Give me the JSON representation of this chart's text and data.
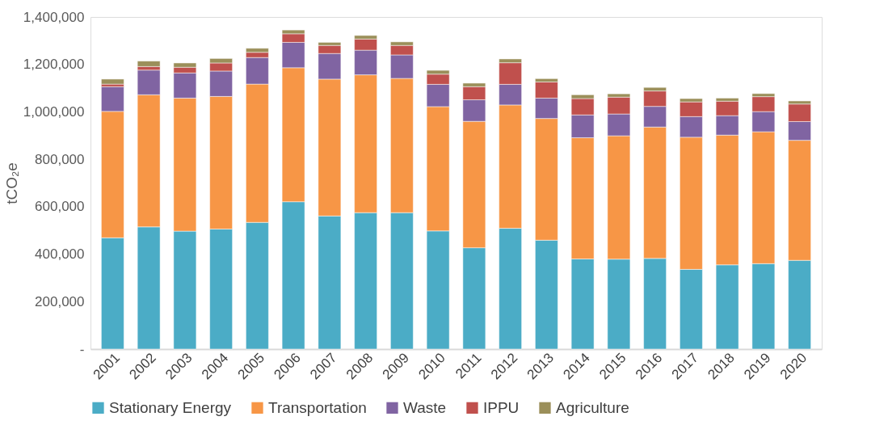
{
  "chart_data": {
    "type": "bar",
    "stacked": true,
    "ylabel": "tCO₂e",
    "categories": [
      "2001",
      "2002",
      "2003",
      "2004",
      "2005",
      "2006",
      "2007",
      "2008",
      "2009",
      "2010",
      "2011",
      "2012",
      "2013",
      "2014",
      "2015",
      "2016",
      "2017",
      "2018",
      "2019",
      "2020"
    ],
    "series": [
      {
        "name": "Stationary Energy",
        "color": "#4bacc6",
        "values": [
          469000,
          515000,
          497000,
          506000,
          534000,
          621000,
          561000,
          575000,
          575000,
          498000,
          427000,
          509000,
          459000,
          380000,
          379000,
          382000,
          336000,
          355000,
          360000,
          374000
        ]
      },
      {
        "name": "Transportation",
        "color": "#f79646",
        "values": [
          533000,
          557000,
          561000,
          559000,
          583000,
          565000,
          577000,
          581000,
          566000,
          524000,
          533000,
          520000,
          513000,
          511000,
          520000,
          554000,
          557000,
          547000,
          556000,
          506000
        ]
      },
      {
        "name": "Waste",
        "color": "#8064a2",
        "values": [
          104000,
          104000,
          106000,
          107000,
          112000,
          107000,
          108000,
          104000,
          99000,
          94000,
          91000,
          87000,
          86000,
          96000,
          92000,
          87000,
          87000,
          82000,
          85000,
          79000
        ]
      },
      {
        "name": "IPPU",
        "color": "#c0504d",
        "values": [
          11000,
          15000,
          24000,
          34000,
          22000,
          36000,
          34000,
          47000,
          40000,
          43000,
          55000,
          91000,
          68000,
          69000,
          71000,
          65000,
          62000,
          61000,
          63000,
          74000
        ]
      },
      {
        "name": "Agriculture",
        "color": "#9b8f5a",
        "values": [
          21000,
          23000,
          18000,
          19000,
          17000,
          16000,
          13000,
          15000,
          15000,
          16000,
          15000,
          16000,
          14000,
          16000,
          14000,
          15000,
          14000,
          13000,
          13000,
          13000
        ]
      }
    ],
    "ylim": [
      0,
      1400000
    ],
    "yticks": [
      {
        "value": 0,
        "label": "-"
      },
      {
        "value": 200000,
        "label": "200,000"
      },
      {
        "value": 400000,
        "label": "400,000"
      },
      {
        "value": 600000,
        "label": "600,000"
      },
      {
        "value": 800000,
        "label": "800,000"
      },
      {
        "value": 1000000,
        "label": "1,000,000"
      },
      {
        "value": 1200000,
        "label": "1,200,000"
      },
      {
        "value": 1400000,
        "label": "1,400,000"
      }
    ],
    "grid": false,
    "legend": "bottom"
  }
}
